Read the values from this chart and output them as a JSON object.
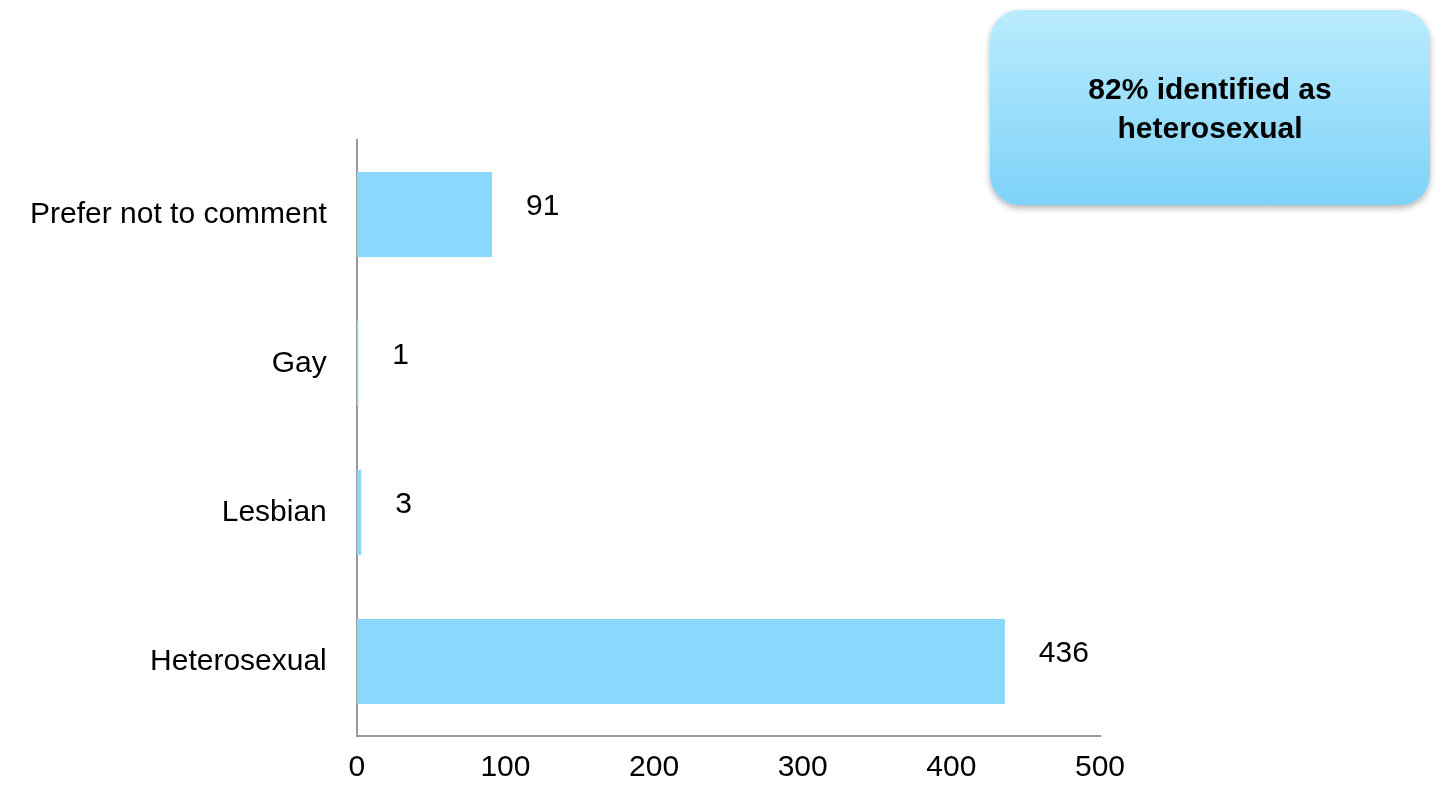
{
  "chart_data": {
    "type": "bar",
    "orientation": "horizontal",
    "categories": [
      "Prefer not to comment",
      "Gay",
      "Lesbian",
      "Heterosexual"
    ],
    "values": [
      91,
      1,
      3,
      436
    ],
    "color": "#8ad8fc",
    "xlim": [
      0,
      500
    ],
    "xticks": [
      0,
      100,
      200,
      300,
      400,
      500
    ],
    "grid": false,
    "legend": false,
    "data_labels": true,
    "annotations": [
      "82% identified as heterosexual"
    ]
  }
}
